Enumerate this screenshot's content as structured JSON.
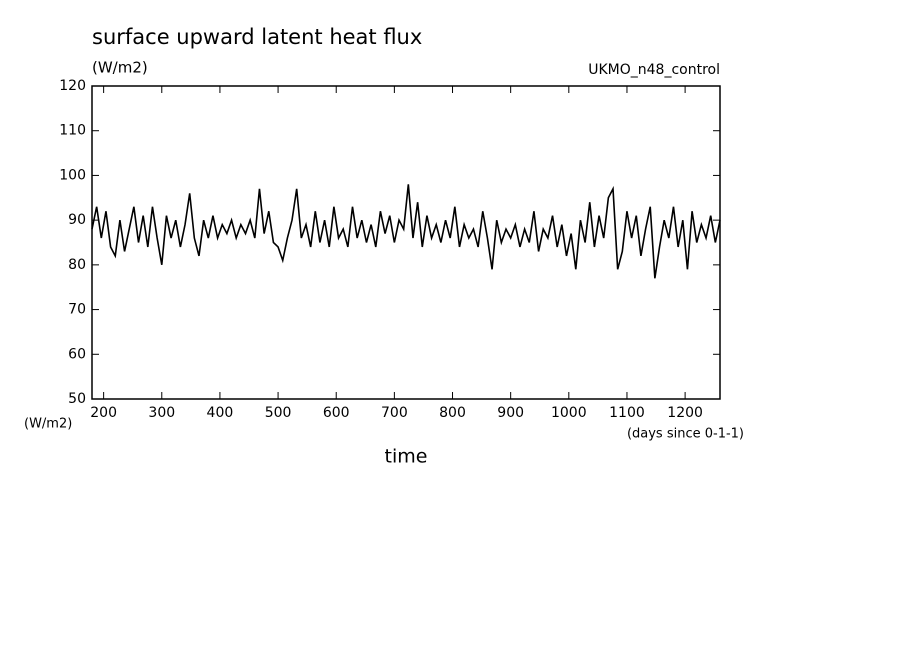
{
  "chart_data": {
    "type": "line",
    "title": "surface upward latent heat flux",
    "units": "(W/m2)",
    "subtitle": "UKMO_n48_control",
    "ylabel": "(W/m2)",
    "xunits": "(days since 0-1-1)",
    "xlabel": "time",
    "xlim": [
      180,
      1260
    ],
    "ylim": [
      50,
      120
    ],
    "xticks": [
      200,
      300,
      400,
      500,
      600,
      700,
      800,
      900,
      1000,
      1100,
      1200
    ],
    "yticks": [
      50,
      60,
      70,
      80,
      90,
      100,
      110,
      120
    ],
    "x": [
      180,
      188,
      196,
      204,
      212,
      220,
      228,
      236,
      244,
      252,
      260,
      268,
      276,
      284,
      292,
      300,
      308,
      316,
      324,
      332,
      340,
      348,
      356,
      364,
      372,
      380,
      388,
      396,
      404,
      412,
      420,
      428,
      436,
      444,
      452,
      460,
      468,
      476,
      484,
      492,
      500,
      508,
      516,
      524,
      532,
      540,
      548,
      556,
      564,
      572,
      580,
      588,
      596,
      604,
      612,
      620,
      628,
      636,
      644,
      652,
      660,
      668,
      676,
      684,
      692,
      700,
      708,
      716,
      724,
      732,
      740,
      748,
      756,
      764,
      772,
      780,
      788,
      796,
      804,
      812,
      820,
      828,
      836,
      844,
      852,
      860,
      868,
      876,
      884,
      892,
      900,
      908,
      916,
      924,
      932,
      940,
      948,
      956,
      964,
      972,
      980,
      988,
      996,
      1004,
      1012,
      1020,
      1028,
      1036,
      1044,
      1052,
      1060,
      1068,
      1076,
      1084,
      1092,
      1100,
      1108,
      1116,
      1124,
      1132,
      1140,
      1148,
      1156,
      1164,
      1172,
      1180,
      1188,
      1196,
      1204,
      1212,
      1220,
      1228,
      1236,
      1244,
      1252,
      1260
    ],
    "series": [
      {
        "color": "#000000",
        "values": [
          88,
          93,
          86,
          92,
          84,
          82,
          90,
          83,
          88,
          93,
          85,
          91,
          84,
          93,
          86,
          80,
          91,
          86,
          90,
          84,
          89,
          96,
          86,
          82,
          90,
          86,
          91,
          86,
          89,
          87,
          90,
          86,
          89,
          87,
          90,
          86,
          97,
          87,
          92,
          85,
          84,
          81,
          86,
          90,
          97,
          86,
          89,
          84,
          92,
          85,
          90,
          84,
          93,
          86,
          88,
          84,
          93,
          86,
          90,
          85,
          89,
          84,
          92,
          87,
          91,
          85,
          90,
          88,
          98,
          86,
          94,
          84,
          91,
          86,
          89,
          85,
          90,
          86,
          93,
          84,
          89,
          86,
          88,
          84,
          92,
          86,
          79,
          90,
          85,
          88,
          86,
          89,
          84,
          88,
          85,
          92,
          83,
          88,
          86,
          91,
          84,
          89,
          82,
          87,
          79,
          90,
          85,
          94,
          84,
          91,
          86,
          95,
          97,
          79,
          83,
          92,
          86,
          91,
          82,
          88,
          93,
          77,
          84,
          90,
          86,
          93,
          84,
          90,
          79,
          92,
          85,
          89,
          86,
          91,
          85,
          90
        ]
      }
    ]
  }
}
